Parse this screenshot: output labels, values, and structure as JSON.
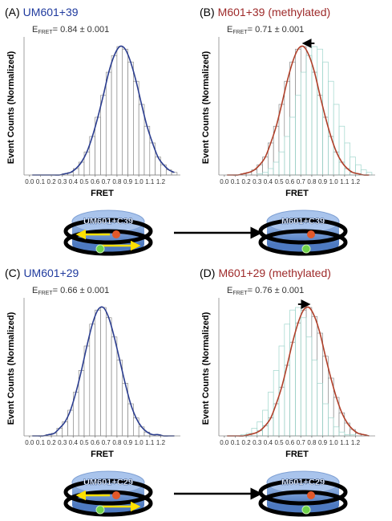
{
  "chart_data": [
    {
      "type": "histogram",
      "panel": "(A)",
      "title": "UM601+39",
      "title_color": "#1f3a9e",
      "subtitle_prefix": "E",
      "subtitle_sub": "FRET",
      "subtitle": "= 0.84 ± 0.001",
      "xlabel": "FRET",
      "ylabel": "Event Counts (Normalized)",
      "bins": [
        0,
        0.05,
        0.1,
        0.15,
        0.2,
        0.25,
        0.3,
        0.35,
        0.4,
        0.45,
        0.5,
        0.55,
        0.6,
        0.65,
        0.7,
        0.75,
        0.8,
        0.85,
        0.9,
        0.95,
        1.0,
        1.05,
        1.1,
        1.15,
        1.2,
        1.25,
        1.3,
        1.35
      ],
      "counts": [
        0,
        0,
        0,
        0,
        0,
        0,
        0.01,
        0.02,
        0.05,
        0.1,
        0.18,
        0.3,
        0.45,
        0.62,
        0.8,
        0.93,
        1.0,
        0.98,
        0.88,
        0.73,
        0.55,
        0.38,
        0.25,
        0.14,
        0.08,
        0.04,
        0.02
      ],
      "color": "#ffffff",
      "edge_color": "#777777",
      "fit_color": "#2b3d8f",
      "xlim": [
        -0.05,
        1.38
      ],
      "ylim": [
        0,
        1.05
      ],
      "xticks": [
        {
          "value": 0,
          "label": "0.0"
        },
        {
          "value": 0.1,
          "label": "0.1"
        },
        {
          "value": 0.2,
          "label": "0.2"
        },
        {
          "value": 0.3,
          "label": "0.3"
        },
        {
          "value": 0.4,
          "label": "0.4"
        },
        {
          "value": 0.5,
          "label": "0.5"
        },
        {
          "value": 0.6,
          "label": "0.6"
        },
        {
          "value": 0.7,
          "label": "0.7"
        },
        {
          "value": 0.8,
          "label": "0.8"
        },
        {
          "value": 0.9,
          "label": "0.9"
        },
        {
          "value": 1.0,
          "label": "1.0"
        },
        {
          "value": 1.1,
          "label": "1.1"
        },
        {
          "value": 1.2,
          "label": "1.2"
        }
      ]
    },
    {
      "type": "histogram",
      "panel": "(B)",
      "title": "M601+39 (methylated)",
      "title_color": "#9e2a2a",
      "subtitle_prefix": "E",
      "subtitle_sub": "FRET",
      "subtitle": "= 0.71 ± 0.001",
      "xlabel": "FRET",
      "ylabel": "Event Counts (Normalized)",
      "bins": [
        0,
        0.05,
        0.1,
        0.15,
        0.2,
        0.25,
        0.3,
        0.35,
        0.4,
        0.45,
        0.5,
        0.55,
        0.6,
        0.65,
        0.7,
        0.75,
        0.8,
        0.85,
        0.9,
        0.95,
        1.0,
        1.05,
        1.1,
        1.15,
        1.2,
        1.25,
        1.3,
        1.35
      ],
      "counts": [
        0,
        0,
        0,
        0.01,
        0.02,
        0.04,
        0.08,
        0.14,
        0.25,
        0.38,
        0.55,
        0.73,
        0.88,
        0.98,
        1.0,
        0.93,
        0.8,
        0.62,
        0.45,
        0.3,
        0.18,
        0.1,
        0.05,
        0.02,
        0.01,
        0,
        0
      ],
      "overlay_counts": [
        0,
        0,
        0,
        0,
        0,
        0,
        0.01,
        0.02,
        0.05,
        0.1,
        0.18,
        0.3,
        0.45,
        0.62,
        0.8,
        0.93,
        1.0,
        0.98,
        0.88,
        0.73,
        0.55,
        0.38,
        0.25,
        0.14,
        0.08,
        0.04,
        0.02
      ],
      "overlay_color": "#9fd6cc",
      "color": "#ffffff",
      "edge_color": "#777777",
      "fit_color": "#b0402a",
      "xlim": [
        -0.05,
        1.38
      ],
      "ylim": [
        0,
        1.05
      ],
      "xticks": [
        {
          "value": 0,
          "label": "0.0"
        },
        {
          "value": 0.1,
          "label": "0.1"
        },
        {
          "value": 0.2,
          "label": "0.2"
        },
        {
          "value": 0.3,
          "label": "0.3"
        },
        {
          "value": 0.4,
          "label": "0.4"
        },
        {
          "value": 0.5,
          "label": "0.5"
        },
        {
          "value": 0.6,
          "label": "0.6"
        },
        {
          "value": 0.7,
          "label": "0.7"
        },
        {
          "value": 0.8,
          "label": "0.8"
        },
        {
          "value": 0.9,
          "label": "0.9"
        },
        {
          "value": 1.0,
          "label": "1.0"
        },
        {
          "value": 1.1,
          "label": "1.1"
        },
        {
          "value": 1.2,
          "label": "1.2"
        }
      ]
    },
    {
      "type": "histogram",
      "panel": "(C)",
      "title": "UM601+29",
      "title_color": "#1f3a9e",
      "subtitle_prefix": "E",
      "subtitle_sub": "FRET",
      "subtitle": "= 0.66 ± 0.001",
      "xlabel": "FRET",
      "ylabel": "Event Counts (Normalized)",
      "bins": [
        0,
        0.05,
        0.1,
        0.15,
        0.2,
        0.25,
        0.3,
        0.35,
        0.4,
        0.45,
        0.5,
        0.55,
        0.6,
        0.65,
        0.7,
        0.75,
        0.8,
        0.85,
        0.9,
        0.95,
        1.0,
        1.05,
        1.1,
        1.15,
        1.2,
        1.25,
        1.3,
        1.35
      ],
      "counts": [
        0,
        0,
        0,
        0.01,
        0.02,
        0.06,
        0.11,
        0.2,
        0.34,
        0.51,
        0.7,
        0.87,
        0.98,
        1.0,
        0.92,
        0.77,
        0.59,
        0.41,
        0.25,
        0.14,
        0.07,
        0.03,
        0.01,
        0.01,
        0,
        0,
        0
      ],
      "color": "#ffffff",
      "edge_color": "#777777",
      "fit_color": "#2b3d8f",
      "xlim": [
        -0.05,
        1.38
      ],
      "ylim": [
        0,
        1.05
      ],
      "xticks": [
        {
          "value": 0,
          "label": "0.0"
        },
        {
          "value": 0.1,
          "label": "0.1"
        },
        {
          "value": 0.2,
          "label": "0.2"
        },
        {
          "value": 0.3,
          "label": "0.3"
        },
        {
          "value": 0.4,
          "label": "0.4"
        },
        {
          "value": 0.5,
          "label": "0.5"
        },
        {
          "value": 0.6,
          "label": "0.6"
        },
        {
          "value": 0.7,
          "label": "0.7"
        },
        {
          "value": 0.8,
          "label": "0.8"
        },
        {
          "value": 0.9,
          "label": "0.9"
        },
        {
          "value": 1.0,
          "label": "1.0"
        },
        {
          "value": 1.1,
          "label": "1.1"
        },
        {
          "value": 1.2,
          "label": "1.2"
        }
      ]
    },
    {
      "type": "histogram",
      "panel": "(D)",
      "title": "M601+29 (methylated)",
      "title_color": "#9e2a2a",
      "subtitle_prefix": "E",
      "subtitle_sub": "FRET",
      "subtitle": "= 0.76 ± 0.001",
      "xlabel": "FRET",
      "ylabel": "Event Counts (Normalized)",
      "bins": [
        0,
        0.05,
        0.1,
        0.15,
        0.2,
        0.25,
        0.3,
        0.35,
        0.4,
        0.45,
        0.5,
        0.55,
        0.6,
        0.65,
        0.7,
        0.75,
        0.8,
        0.85,
        0.9,
        0.95,
        1.0,
        1.05,
        1.1,
        1.15,
        1.2,
        1.25,
        1.3,
        1.35
      ],
      "counts": [
        0,
        0,
        0,
        0,
        0.01,
        0.02,
        0.04,
        0.08,
        0.14,
        0.25,
        0.38,
        0.55,
        0.73,
        0.88,
        0.98,
        1.0,
        0.93,
        0.8,
        0.62,
        0.45,
        0.3,
        0.18,
        0.1,
        0.05,
        0.02,
        0.01,
        0
      ],
      "overlay_counts": [
        0,
        0,
        0,
        0.01,
        0.02,
        0.06,
        0.11,
        0.2,
        0.34,
        0.51,
        0.7,
        0.87,
        0.98,
        1.0,
        0.92,
        0.77,
        0.59,
        0.41,
        0.25,
        0.14,
        0.07,
        0.03,
        0.01,
        0.01,
        0,
        0,
        0
      ],
      "overlay_color": "#9fd6cc",
      "color": "#ffffff",
      "edge_color": "#777777",
      "fit_color": "#b0402a",
      "xlim": [
        -0.05,
        1.38
      ],
      "ylim": [
        0,
        1.05
      ],
      "xticks": [
        {
          "value": 0,
          "label": "0.0"
        },
        {
          "value": 0.1,
          "label": "0.1"
        },
        {
          "value": 0.2,
          "label": "0.2"
        },
        {
          "value": 0.3,
          "label": "0.3"
        },
        {
          "value": 0.4,
          "label": "0.4"
        },
        {
          "value": 0.5,
          "label": "0.5"
        },
        {
          "value": 0.6,
          "label": "0.6"
        },
        {
          "value": 0.7,
          "label": "0.7"
        },
        {
          "value": 0.8,
          "label": "0.8"
        },
        {
          "value": 0.9,
          "label": "0.9"
        },
        {
          "value": 1.0,
          "label": "1.0"
        },
        {
          "value": 1.1,
          "label": "1.1"
        },
        {
          "value": 1.2,
          "label": "1.2"
        }
      ]
    }
  ],
  "diagrams": [
    {
      "label": "UM601+C39"
    },
    {
      "label": "M601+C39"
    },
    {
      "label": "UM601+C29"
    },
    {
      "label": "M601+C29"
    }
  ]
}
